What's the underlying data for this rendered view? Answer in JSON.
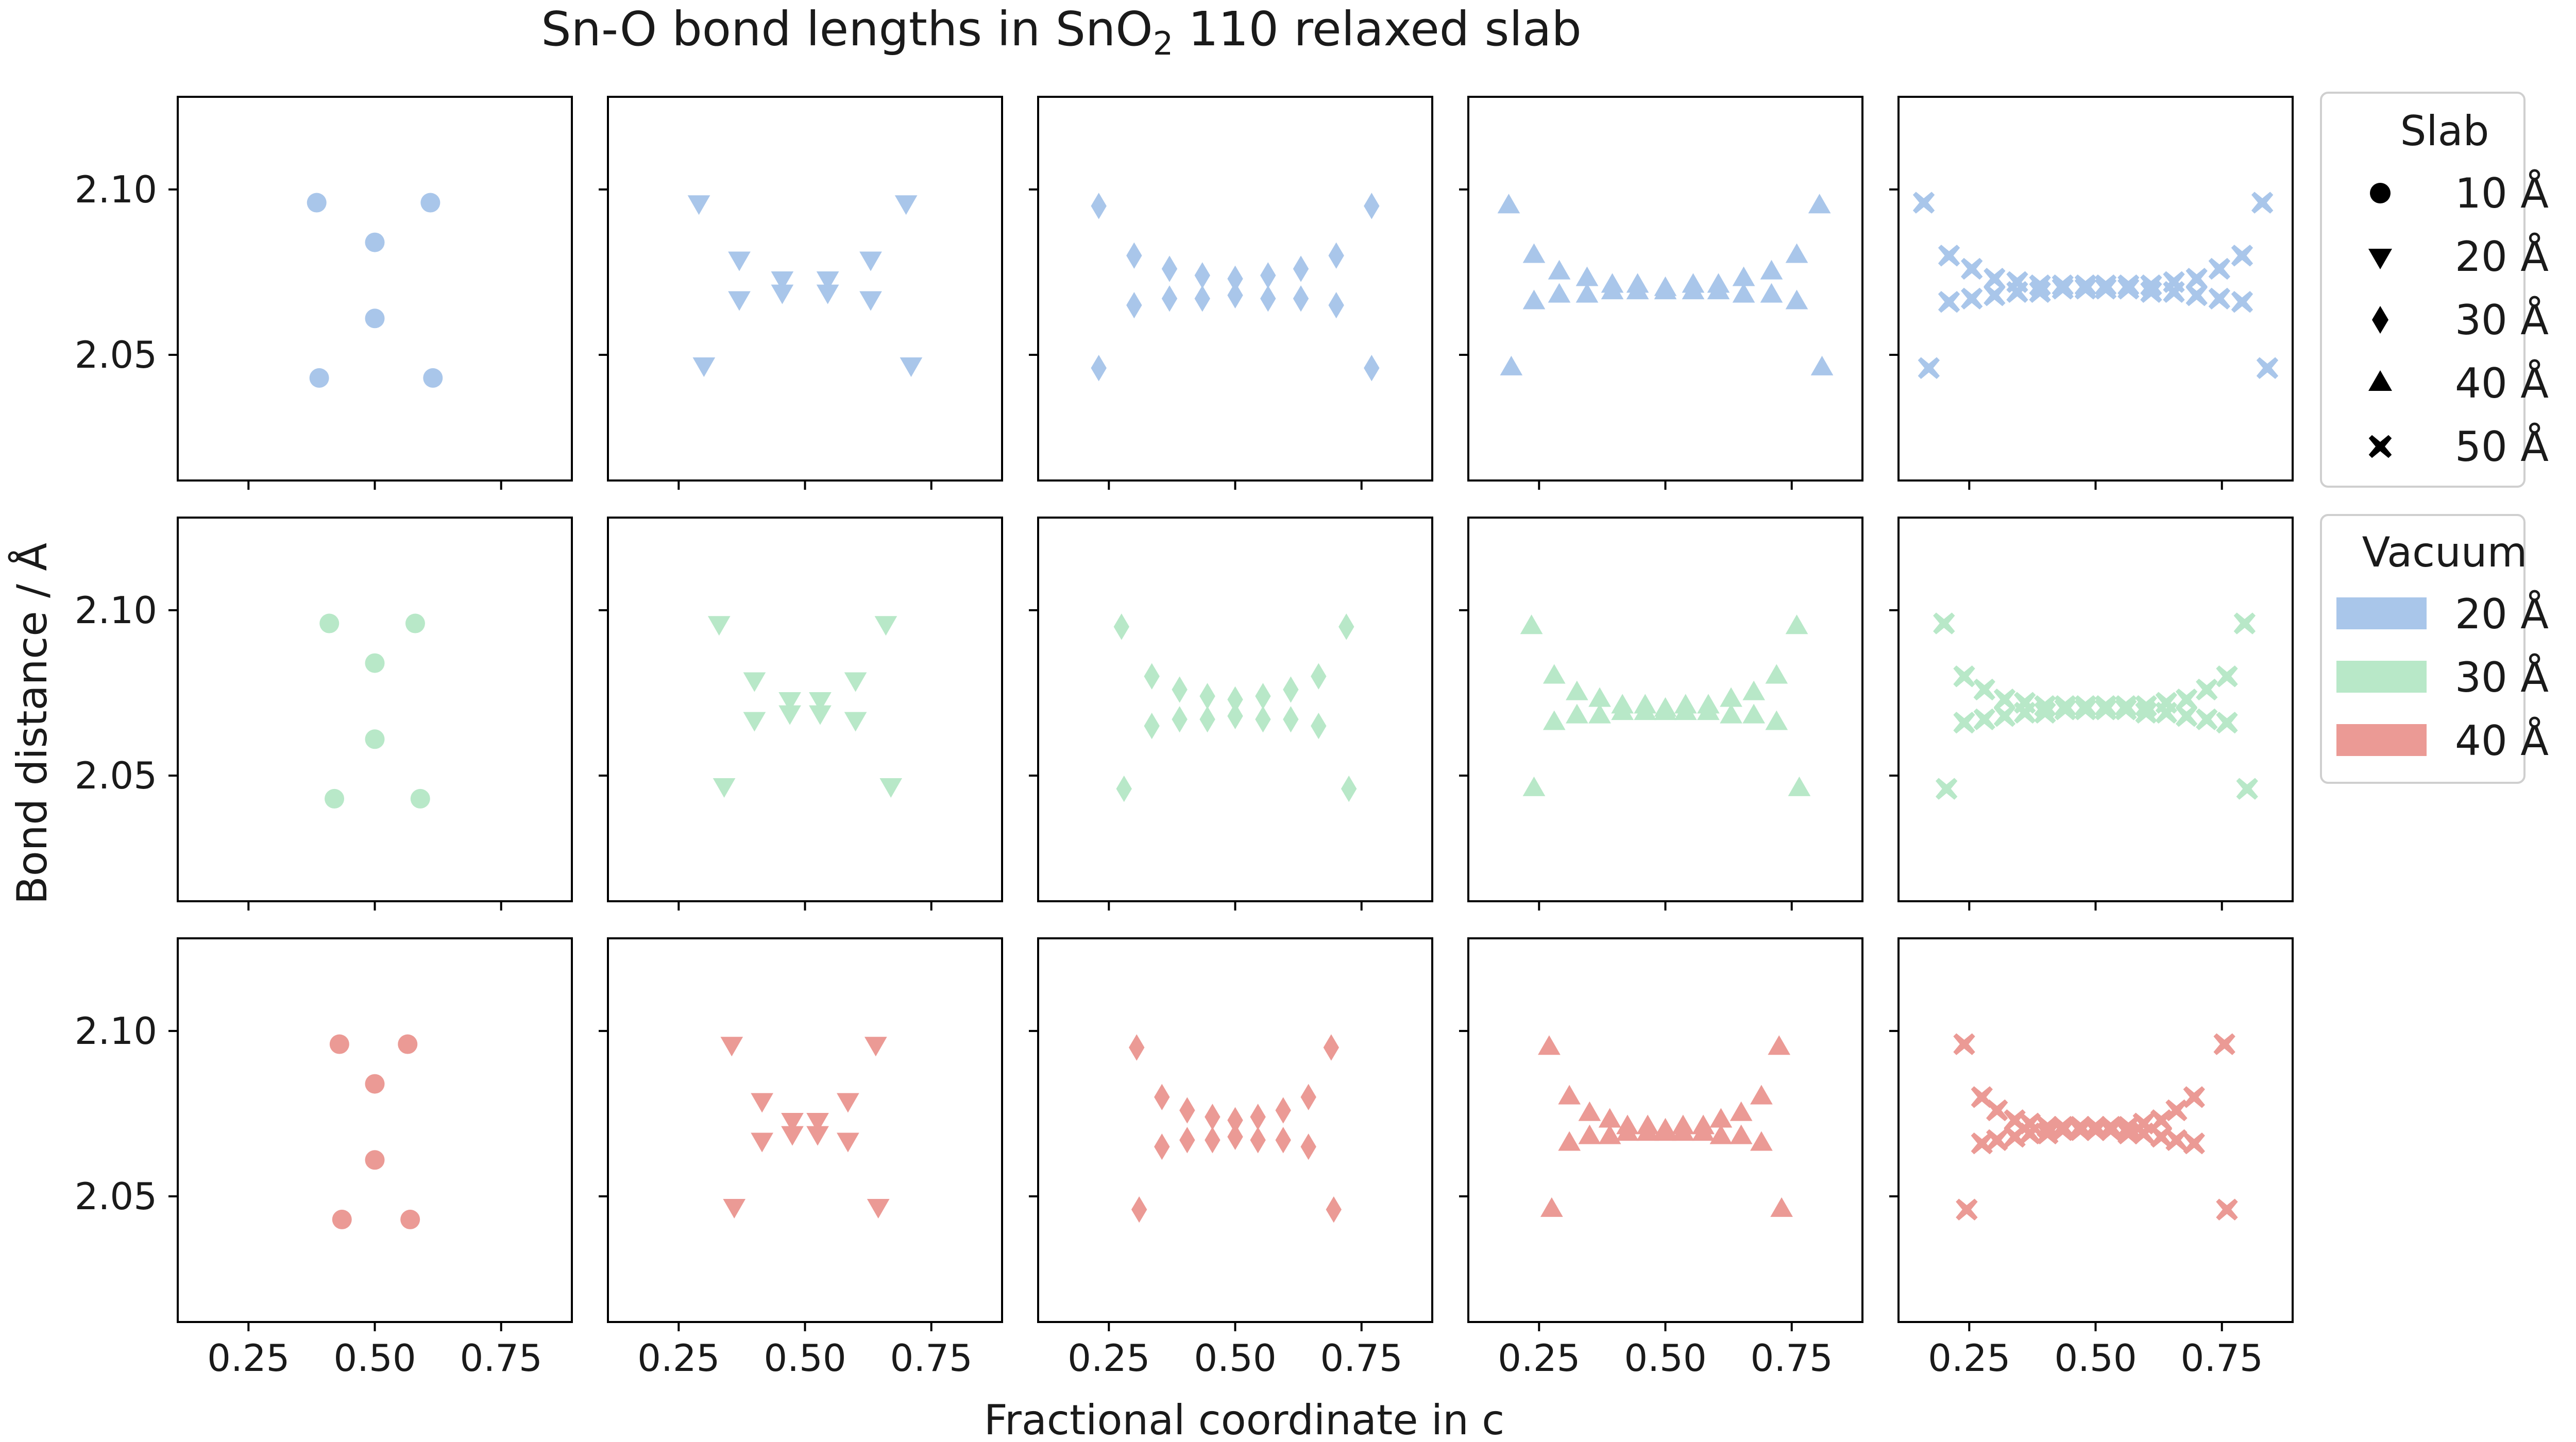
{
  "colors": {
    "v20": "#a9c6ea",
    "v30": "#b8e8c8",
    "v40": "#eb9a95",
    "axis": "#000000",
    "legend_marker": "#000000"
  },
  "chart_data": {
    "type": "scatter",
    "title_pre": "Sn-O bond lengths in SnO",
    "title_sub": "2",
    "title_post": " 110 relaxed slab",
    "xlabel": "Fractional coordinate in c",
    "ylabel": "Bond distance / Å",
    "xlim": [
      0.11,
      0.89
    ],
    "ylim": [
      2.012,
      2.128
    ],
    "xticks": [
      0.25,
      0.5,
      0.75
    ],
    "xtick_labels": [
      "0.25",
      "0.50",
      "0.75"
    ],
    "yticks": [
      2.05,
      2.1
    ],
    "ytick_labels": [
      "2.05",
      "2.10"
    ],
    "grid": false,
    "legend_slab": {
      "title": "Slab",
      "entries": [
        {
          "marker": "circle",
          "label": "10 Å"
        },
        {
          "marker": "triangle-down",
          "label": "20 Å"
        },
        {
          "marker": "diamond",
          "label": "30 Å"
        },
        {
          "marker": "triangle-up",
          "label": "40 Å"
        },
        {
          "marker": "x",
          "label": "50 Å"
        }
      ]
    },
    "legend_vacuum": {
      "title": "Vacuum",
      "entries": [
        {
          "color_key": "v20",
          "label": "20 Å"
        },
        {
          "color_key": "v30",
          "label": "30 Å"
        },
        {
          "color_key": "v40",
          "label": "40 Å"
        }
      ]
    },
    "rows": [
      {
        "vacuum": "20 Å",
        "color_key": "v20",
        "panels": [
          {
            "slab": "10 Å",
            "marker": "circle",
            "x": [
              0.385,
              0.39,
              0.5,
              0.5,
              0.61,
              0.615
            ],
            "y": [
              2.096,
              2.043,
              2.084,
              2.061,
              2.096,
              2.043
            ]
          },
          {
            "slab": "20 Å",
            "marker": "triangle-down",
            "x": [
              0.29,
              0.3,
              0.37,
              0.37,
              0.455,
              0.455,
              0.545,
              0.545,
              0.63,
              0.63,
              0.7,
              0.71
            ],
            "y": [
              2.096,
              2.047,
              2.079,
              2.067,
              2.073,
              2.069,
              2.073,
              2.069,
              2.079,
              2.067,
              2.096,
              2.047
            ],
            "": "noop"
          },
          {
            "slab": "30 Å",
            "marker": "diamond",
            "x": [
              0.23,
              0.23,
              0.3,
              0.3,
              0.37,
              0.37,
              0.435,
              0.435,
              0.5,
              0.5,
              0.565,
              0.565,
              0.63,
              0.63,
              0.7,
              0.7,
              0.77,
              0.77
            ],
            "y": [
              2.095,
              2.046,
              2.08,
              2.065,
              2.076,
              2.067,
              2.074,
              2.067,
              2.073,
              2.068,
              2.074,
              2.067,
              2.076,
              2.067,
              2.08,
              2.065,
              2.095,
              2.046
            ]
          },
          {
            "slab": "40 Å",
            "marker": "triangle-up",
            "x": [
              0.19,
              0.195,
              0.24,
              0.24,
              0.29,
              0.29,
              0.345,
              0.345,
              0.395,
              0.395,
              0.445,
              0.445,
              0.5,
              0.5,
              0.555,
              0.555,
              0.605,
              0.605,
              0.655,
              0.655,
              0.71,
              0.71,
              0.76,
              0.76,
              0.805,
              0.81
            ],
            "y": [
              2.095,
              2.046,
              2.08,
              2.066,
              2.075,
              2.068,
              2.073,
              2.068,
              2.071,
              2.069,
              2.071,
              2.069,
              2.07,
              2.069,
              2.071,
              2.069,
              2.071,
              2.069,
              2.073,
              2.068,
              2.075,
              2.068,
              2.08,
              2.066,
              2.095,
              2.046
            ]
          },
          {
            "slab": "50 Å",
            "marker": "x",
            "x": [
              0.16,
              0.17,
              0.21,
              0.21,
              0.255,
              0.255,
              0.3,
              0.3,
              0.345,
              0.345,
              0.39,
              0.39,
              0.435,
              0.435,
              0.48,
              0.48,
              0.52,
              0.52,
              0.565,
              0.565,
              0.61,
              0.61,
              0.655,
              0.655,
              0.7,
              0.7,
              0.745,
              0.745,
              0.79,
              0.79,
              0.83,
              0.84
            ],
            "y": [
              2.096,
              2.046,
              2.08,
              2.066,
              2.076,
              2.067,
              2.073,
              2.068,
              2.072,
              2.069,
              2.071,
              2.069,
              2.071,
              2.07,
              2.071,
              2.07,
              2.071,
              2.07,
              2.071,
              2.07,
              2.071,
              2.069,
              2.072,
              2.069,
              2.073,
              2.068,
              2.076,
              2.067,
              2.08,
              2.066,
              2.096,
              2.046
            ]
          }
        ]
      },
      {
        "vacuum": "30 Å",
        "color_key": "v30",
        "panels": [
          {
            "slab": "10 Å",
            "marker": "circle",
            "x": [
              0.41,
              0.42,
              0.5,
              0.5,
              0.58,
              0.59
            ],
            "y": [
              2.096,
              2.043,
              2.084,
              2.061,
              2.096,
              2.043
            ]
          },
          {
            "slab": "20 Å",
            "marker": "triangle-down",
            "x": [
              0.33,
              0.34,
              0.4,
              0.4,
              0.47,
              0.47,
              0.53,
              0.53,
              0.6,
              0.6,
              0.66,
              0.67
            ],
            "y": [
              2.096,
              2.047,
              2.079,
              2.067,
              2.073,
              2.069,
              2.073,
              2.069,
              2.079,
              2.067,
              2.096,
              2.047
            ]
          },
          {
            "slab": "30 Å",
            "marker": "diamond",
            "x": [
              0.275,
              0.28,
              0.335,
              0.335,
              0.39,
              0.39,
              0.445,
              0.445,
              0.5,
              0.5,
              0.555,
              0.555,
              0.61,
              0.61,
              0.665,
              0.665,
              0.72,
              0.725
            ],
            "y": [
              2.095,
              2.046,
              2.08,
              2.065,
              2.076,
              2.067,
              2.074,
              2.067,
              2.073,
              2.068,
              2.074,
              2.067,
              2.076,
              2.067,
              2.08,
              2.065,
              2.095,
              2.046
            ]
          },
          {
            "slab": "40 Å",
            "marker": "triangle-up",
            "x": [
              0.235,
              0.24,
              0.28,
              0.28,
              0.325,
              0.325,
              0.37,
              0.37,
              0.415,
              0.415,
              0.46,
              0.46,
              0.5,
              0.5,
              0.54,
              0.54,
              0.585,
              0.585,
              0.63,
              0.63,
              0.675,
              0.675,
              0.72,
              0.72,
              0.76,
              0.765
            ],
            "y": [
              2.095,
              2.046,
              2.08,
              2.066,
              2.075,
              2.068,
              2.073,
              2.068,
              2.071,
              2.069,
              2.071,
              2.069,
              2.07,
              2.069,
              2.071,
              2.069,
              2.071,
              2.069,
              2.073,
              2.068,
              2.075,
              2.068,
              2.08,
              2.066,
              2.095,
              2.046
            ]
          },
          {
            "slab": "50 Å",
            "marker": "x",
            "x": [
              0.2,
              0.205,
              0.24,
              0.24,
              0.28,
              0.28,
              0.32,
              0.32,
              0.36,
              0.36,
              0.4,
              0.4,
              0.44,
              0.44,
              0.48,
              0.48,
              0.52,
              0.52,
              0.56,
              0.56,
              0.6,
              0.6,
              0.64,
              0.64,
              0.68,
              0.68,
              0.72,
              0.72,
              0.76,
              0.76,
              0.795,
              0.8
            ],
            "y": [
              2.096,
              2.046,
              2.08,
              2.066,
              2.076,
              2.067,
              2.073,
              2.068,
              2.072,
              2.069,
              2.071,
              2.069,
              2.071,
              2.07,
              2.071,
              2.07,
              2.071,
              2.07,
              2.071,
              2.07,
              2.071,
              2.069,
              2.072,
              2.069,
              2.073,
              2.068,
              2.076,
              2.067,
              2.08,
              2.066,
              2.096,
              2.046
            ]
          }
        ]
      },
      {
        "vacuum": "40 Å",
        "color_key": "v40",
        "panels": [
          {
            "slab": "10 Å",
            "marker": "circle",
            "x": [
              0.43,
              0.435,
              0.5,
              0.5,
              0.565,
              0.57
            ],
            "y": [
              2.096,
              2.043,
              2.084,
              2.061,
              2.096,
              2.043
            ]
          },
          {
            "slab": "20 Å",
            "marker": "triangle-down",
            "x": [
              0.355,
              0.36,
              0.415,
              0.415,
              0.475,
              0.475,
              0.525,
              0.525,
              0.585,
              0.585,
              0.64,
              0.645
            ],
            "y": [
              2.096,
              2.047,
              2.079,
              2.067,
              2.073,
              2.069,
              2.073,
              2.069,
              2.079,
              2.067,
              2.096,
              2.047
            ]
          },
          {
            "slab": "30 Å",
            "marker": "diamond",
            "x": [
              0.305,
              0.31,
              0.355,
              0.355,
              0.405,
              0.405,
              0.455,
              0.455,
              0.5,
              0.5,
              0.545,
              0.545,
              0.595,
              0.595,
              0.645,
              0.645,
              0.69,
              0.695
            ],
            "y": [
              2.095,
              2.046,
              2.08,
              2.065,
              2.076,
              2.067,
              2.074,
              2.067,
              2.073,
              2.068,
              2.074,
              2.067,
              2.076,
              2.067,
              2.08,
              2.065,
              2.095,
              2.046
            ]
          },
          {
            "slab": "40 Å",
            "marker": "triangle-up",
            "x": [
              0.27,
              0.275,
              0.31,
              0.31,
              0.35,
              0.35,
              0.39,
              0.39,
              0.425,
              0.425,
              0.465,
              0.465,
              0.5,
              0.5,
              0.535,
              0.535,
              0.575,
              0.575,
              0.61,
              0.61,
              0.65,
              0.65,
              0.69,
              0.69,
              0.725,
              0.73
            ],
            "y": [
              2.095,
              2.046,
              2.08,
              2.066,
              2.075,
              2.068,
              2.073,
              2.068,
              2.071,
              2.069,
              2.071,
              2.069,
              2.07,
              2.069,
              2.071,
              2.069,
              2.071,
              2.069,
              2.073,
              2.068,
              2.075,
              2.068,
              2.08,
              2.066,
              2.095,
              2.046
            ]
          },
          {
            "slab": "50 Å",
            "marker": "x",
            "x": [
              0.24,
              0.245,
              0.275,
              0.275,
              0.305,
              0.305,
              0.34,
              0.34,
              0.37,
              0.37,
              0.405,
              0.405,
              0.435,
              0.435,
              0.47,
              0.47,
              0.5,
              0.5,
              0.53,
              0.53,
              0.565,
              0.565,
              0.595,
              0.595,
              0.63,
              0.63,
              0.66,
              0.66,
              0.695,
              0.695,
              0.755,
              0.76
            ],
            "y": [
              2.096,
              2.046,
              2.08,
              2.066,
              2.076,
              2.067,
              2.073,
              2.068,
              2.072,
              2.069,
              2.071,
              2.069,
              2.071,
              2.07,
              2.071,
              2.07,
              2.071,
              2.07,
              2.071,
              2.07,
              2.071,
              2.069,
              2.072,
              2.069,
              2.073,
              2.068,
              2.076,
              2.067,
              2.08,
              2.066,
              2.096,
              2.046
            ]
          }
        ]
      }
    ]
  }
}
